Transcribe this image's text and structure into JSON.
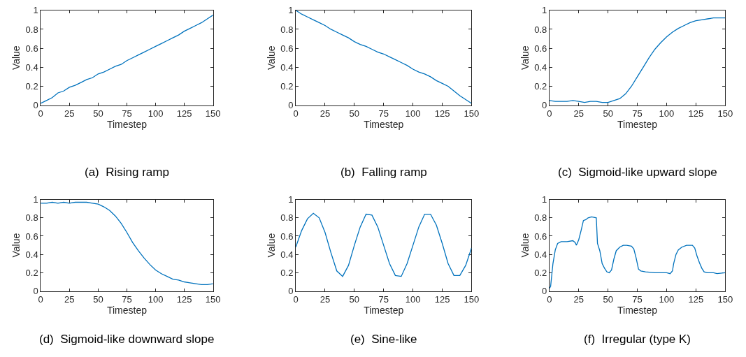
{
  "chart_data": [
    {
      "type": "line",
      "title": "(a)  Rising ramp",
      "xlabel": "Timestep",
      "ylabel": "Value",
      "color": "#0072bd",
      "xlim": [
        0,
        150
      ],
      "ylim": [
        0,
        1
      ],
      "xticks": [
        0,
        25,
        50,
        75,
        100,
        125,
        150
      ],
      "yticks": [
        0,
        0.2,
        0.4,
        0.6,
        0.8,
        1
      ],
      "x": [
        0,
        5,
        10,
        15,
        20,
        25,
        30,
        35,
        40,
        45,
        50,
        55,
        60,
        65,
        70,
        75,
        80,
        85,
        90,
        95,
        100,
        105,
        110,
        115,
        120,
        125,
        130,
        135,
        140,
        145,
        150
      ],
      "values": [
        0.02,
        0.05,
        0.08,
        0.13,
        0.15,
        0.19,
        0.21,
        0.24,
        0.27,
        0.29,
        0.33,
        0.35,
        0.38,
        0.41,
        0.43,
        0.47,
        0.5,
        0.53,
        0.56,
        0.59,
        0.62,
        0.65,
        0.68,
        0.71,
        0.74,
        0.78,
        0.81,
        0.84,
        0.87,
        0.91,
        0.95
      ]
    },
    {
      "type": "line",
      "title": "(b)  Falling ramp",
      "xlabel": "Timestep",
      "ylabel": "Value",
      "color": "#0072bd",
      "xlim": [
        0,
        150
      ],
      "ylim": [
        0,
        1
      ],
      "xticks": [
        0,
        25,
        50,
        75,
        100,
        125,
        150
      ],
      "yticks": [
        0,
        0.2,
        0.4,
        0.6,
        0.8,
        1
      ],
      "x": [
        0,
        5,
        10,
        15,
        20,
        25,
        30,
        35,
        40,
        45,
        50,
        55,
        60,
        65,
        70,
        75,
        80,
        85,
        90,
        95,
        100,
        105,
        110,
        115,
        120,
        125,
        130,
        135,
        140,
        145,
        150
      ],
      "values": [
        1.0,
        0.96,
        0.93,
        0.9,
        0.87,
        0.84,
        0.8,
        0.77,
        0.74,
        0.71,
        0.67,
        0.64,
        0.62,
        0.59,
        0.56,
        0.54,
        0.51,
        0.48,
        0.45,
        0.42,
        0.38,
        0.35,
        0.33,
        0.3,
        0.26,
        0.23,
        0.2,
        0.15,
        0.1,
        0.06,
        0.02
      ]
    },
    {
      "type": "line",
      "title": "(c)  Sigmoid-like upward slope",
      "xlabel": "Timestep",
      "ylabel": "Value",
      "color": "#0072bd",
      "xlim": [
        0,
        150
      ],
      "ylim": [
        0,
        1
      ],
      "xticks": [
        0,
        25,
        50,
        75,
        100,
        125,
        150
      ],
      "yticks": [
        0,
        0.2,
        0.4,
        0.6,
        0.8,
        1
      ],
      "x": [
        0,
        5,
        10,
        15,
        20,
        25,
        30,
        35,
        40,
        45,
        50,
        55,
        60,
        65,
        70,
        75,
        80,
        85,
        90,
        95,
        100,
        105,
        110,
        115,
        120,
        125,
        130,
        135,
        140,
        145,
        150
      ],
      "values": [
        0.05,
        0.04,
        0.04,
        0.04,
        0.05,
        0.04,
        0.03,
        0.04,
        0.04,
        0.03,
        0.03,
        0.05,
        0.07,
        0.12,
        0.2,
        0.3,
        0.4,
        0.5,
        0.59,
        0.66,
        0.72,
        0.77,
        0.81,
        0.84,
        0.87,
        0.89,
        0.9,
        0.91,
        0.92,
        0.92,
        0.92
      ]
    },
    {
      "type": "line",
      "title": "(d)  Sigmoid-like downward slope",
      "xlabel": "Timestep",
      "ylabel": "Value",
      "color": "#0072bd",
      "xlim": [
        0,
        150
      ],
      "ylim": [
        0,
        1
      ],
      "xticks": [
        0,
        25,
        50,
        75,
        100,
        125,
        150
      ],
      "yticks": [
        0,
        0.2,
        0.4,
        0.6,
        0.8,
        1
      ],
      "x": [
        0,
        5,
        10,
        15,
        20,
        25,
        30,
        35,
        40,
        45,
        50,
        55,
        60,
        65,
        70,
        75,
        80,
        85,
        90,
        95,
        100,
        105,
        110,
        115,
        120,
        125,
        130,
        135,
        140,
        145,
        150
      ],
      "values": [
        0.96,
        0.96,
        0.97,
        0.96,
        0.97,
        0.96,
        0.97,
        0.97,
        0.97,
        0.96,
        0.95,
        0.92,
        0.88,
        0.82,
        0.74,
        0.64,
        0.53,
        0.44,
        0.36,
        0.29,
        0.23,
        0.19,
        0.16,
        0.13,
        0.12,
        0.1,
        0.09,
        0.08,
        0.07,
        0.07,
        0.08
      ]
    },
    {
      "type": "line",
      "title": "(e)  Sine-like",
      "xlabel": "Timestep",
      "ylabel": "Value",
      "color": "#0072bd",
      "xlim": [
        0,
        150
      ],
      "ylim": [
        0,
        1
      ],
      "xticks": [
        0,
        25,
        50,
        75,
        100,
        125,
        150
      ],
      "yticks": [
        0,
        0.2,
        0.4,
        0.6,
        0.8,
        1
      ],
      "x": [
        0,
        5,
        10,
        15,
        20,
        25,
        30,
        35,
        40,
        45,
        50,
        55,
        60,
        65,
        70,
        75,
        80,
        85,
        90,
        95,
        100,
        105,
        110,
        115,
        120,
        125,
        130,
        135,
        140,
        145,
        150
      ],
      "values": [
        0.48,
        0.66,
        0.79,
        0.85,
        0.8,
        0.64,
        0.42,
        0.22,
        0.16,
        0.28,
        0.5,
        0.7,
        0.84,
        0.83,
        0.7,
        0.5,
        0.3,
        0.17,
        0.16,
        0.3,
        0.5,
        0.7,
        0.84,
        0.84,
        0.72,
        0.52,
        0.3,
        0.17,
        0.17,
        0.28,
        0.47
      ]
    },
    {
      "type": "line",
      "title": "(f)  Irregular (type K)",
      "xlabel": "Timestep",
      "ylabel": "Value",
      "color": "#0072bd",
      "xlim": [
        0,
        150
      ],
      "ylim": [
        0,
        1
      ],
      "xticks": [
        0,
        25,
        50,
        75,
        100,
        125,
        150
      ],
      "yticks": [
        0,
        0.2,
        0.4,
        0.6,
        0.8,
        1
      ],
      "x": [
        0,
        1,
        3,
        5,
        7,
        10,
        15,
        20,
        22,
        23,
        25,
        27,
        29,
        31,
        33,
        36,
        40,
        41,
        43,
        45,
        47,
        49,
        51,
        53,
        55,
        57,
        60,
        63,
        66,
        70,
        72,
        74,
        76,
        78,
        82,
        90,
        100,
        103,
        105,
        106,
        108,
        110,
        113,
        117,
        122,
        124,
        126,
        128,
        130,
        132,
        135,
        140,
        143,
        150
      ],
      "values": [
        0.03,
        0.05,
        0.3,
        0.45,
        0.52,
        0.54,
        0.54,
        0.55,
        0.53,
        0.5,
        0.56,
        0.66,
        0.77,
        0.78,
        0.8,
        0.81,
        0.8,
        0.52,
        0.44,
        0.3,
        0.25,
        0.21,
        0.2,
        0.23,
        0.35,
        0.44,
        0.48,
        0.5,
        0.5,
        0.49,
        0.46,
        0.36,
        0.24,
        0.22,
        0.21,
        0.2,
        0.2,
        0.19,
        0.22,
        0.3,
        0.4,
        0.45,
        0.48,
        0.5,
        0.5,
        0.47,
        0.38,
        0.31,
        0.25,
        0.21,
        0.2,
        0.2,
        0.19,
        0.2
      ]
    }
  ]
}
